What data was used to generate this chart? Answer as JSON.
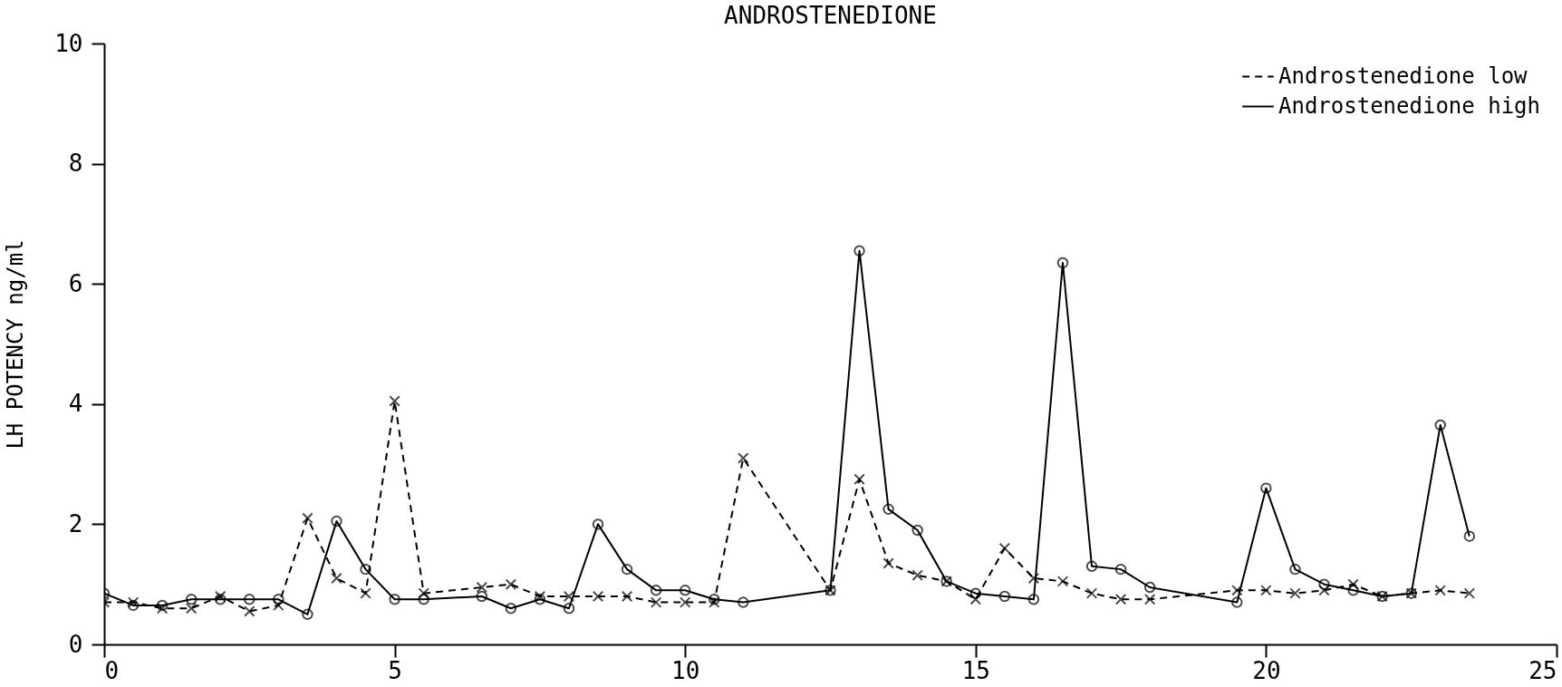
{
  "chart_data": {
    "type": "line",
    "title": "ANDROSTENEDIONE",
    "ylabel": "LH POTENCY ng/ml",
    "xlim": [
      0,
      25
    ],
    "xticks": [
      0,
      5,
      10,
      15,
      20,
      25
    ],
    "ylim": [
      0,
      10
    ],
    "yticks": [
      0,
      2,
      4,
      6,
      8,
      10
    ],
    "grid": false,
    "legend": "top right",
    "series": [
      {
        "name": "Androstenedione low",
        "color": "#000000",
        "line_style": "dashed",
        "marker": "cross",
        "x": [
          0,
          0.5,
          1,
          1.5,
          2,
          2.5,
          3,
          3.5,
          4,
          4.5,
          5,
          5.5,
          6.5,
          7,
          7.5,
          8,
          8.5,
          9,
          9.5,
          10,
          10.5,
          11,
          12.5,
          13,
          13.5,
          14,
          14.5,
          15,
          15.5,
          16,
          16.5,
          17,
          17.5,
          18,
          19.5,
          20,
          20.5,
          21,
          21.5,
          22,
          22.5,
          23,
          23.5
        ],
        "values": [
          0.7,
          0.7,
          0.6,
          0.6,
          0.8,
          0.55,
          0.65,
          2.1,
          1.1,
          0.85,
          4.05,
          0.85,
          0.95,
          1.0,
          0.8,
          0.8,
          0.8,
          0.8,
          0.7,
          0.7,
          0.7,
          3.1,
          0.9,
          2.75,
          1.35,
          1.15,
          1.05,
          0.75,
          1.6,
          1.1,
          1.05,
          0.85,
          0.75,
          0.75,
          0.9,
          0.9,
          0.85,
          0.9,
          1.0,
          0.8,
          0.85,
          0.9,
          0.85
        ]
      },
      {
        "name": "Androstenedione high",
        "color": "#000000",
        "line_style": "solid",
        "marker": "circle",
        "x": [
          0,
          0.5,
          1,
          1.5,
          2,
          2.5,
          3,
          3.5,
          4,
          4.5,
          5,
          5.5,
          6.5,
          7,
          7.5,
          8,
          8.5,
          9,
          9.5,
          10,
          10.5,
          11,
          12.5,
          13,
          13.5,
          14,
          14.5,
          15,
          15.5,
          16,
          16.5,
          17,
          17.5,
          18,
          19.5,
          20,
          20.5,
          21,
          21.5,
          22,
          22.5,
          23,
          23.5
        ],
        "values": [
          0.85,
          0.65,
          0.65,
          0.75,
          0.75,
          0.75,
          0.75,
          0.5,
          2.05,
          1.25,
          0.75,
          0.75,
          0.8,
          0.6,
          0.75,
          0.6,
          2.0,
          1.25,
          0.9,
          0.9,
          0.75,
          0.7,
          0.9,
          6.55,
          2.25,
          1.9,
          1.05,
          0.85,
          0.8,
          0.75,
          6.35,
          1.3,
          1.25,
          0.95,
          0.7,
          2.6,
          1.25,
          1.0,
          0.9,
          0.8,
          0.85,
          3.65,
          1.8
        ]
      }
    ]
  }
}
